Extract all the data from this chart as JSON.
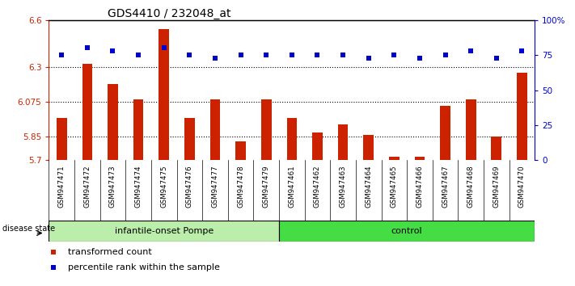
{
  "title": "GDS4410 / 232048_at",
  "samples": [
    "GSM947471",
    "GSM947472",
    "GSM947473",
    "GSM947474",
    "GSM947475",
    "GSM947476",
    "GSM947477",
    "GSM947478",
    "GSM947479",
    "GSM947461",
    "GSM947462",
    "GSM947463",
    "GSM947464",
    "GSM947465",
    "GSM947466",
    "GSM947467",
    "GSM947468",
    "GSM947469",
    "GSM947470"
  ],
  "red_values": [
    5.97,
    6.32,
    6.19,
    6.09,
    6.54,
    5.97,
    6.09,
    5.82,
    6.09,
    5.97,
    5.88,
    5.93,
    5.86,
    5.72,
    5.72,
    6.05,
    6.09,
    5.85,
    6.26
  ],
  "blue_values": [
    75,
    80,
    78,
    75,
    80,
    75,
    73,
    75,
    75,
    75,
    75,
    75,
    73,
    75,
    73,
    75,
    78,
    73,
    78
  ],
  "group1_count": 9,
  "group2_count": 10,
  "group1_label": "infantile-onset Pompe",
  "group2_label": "control",
  "ylim_left": [
    5.7,
    6.6
  ],
  "ylim_right": [
    0,
    100
  ],
  "yticks_left": [
    5.7,
    5.85,
    6.075,
    6.3,
    6.6
  ],
  "ytick_labels_left": [
    "5.7",
    "5.85",
    "6.075",
    "6.3",
    "6.6"
  ],
  "yticks_right": [
    0,
    25,
    50,
    75,
    100
  ],
  "ytick_labels_right": [
    "0",
    "25",
    "50",
    "75",
    "100%"
  ],
  "hlines": [
    5.85,
    6.075,
    6.3
  ],
  "bar_color": "#CC2200",
  "dot_color": "#0000CC",
  "bg_color": "#CCCCCC",
  "group1_bg": "#BBEEAA",
  "group2_bg": "#44DD44",
  "disease_state_label": "disease state",
  "legend_red": "transformed count",
  "legend_blue": "percentile rank within the sample",
  "dot_size": 5,
  "bar_width": 0.4
}
